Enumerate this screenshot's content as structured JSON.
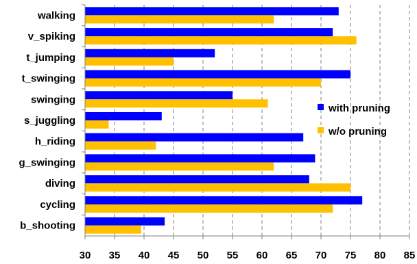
{
  "chart_data": {
    "type": "bar",
    "orientation": "horizontal",
    "categories": [
      "walking",
      "v_spiking",
      "t_jumping",
      "t_swinging",
      "swinging",
      "s_juggling",
      "h_riding",
      "g_swinging",
      "diving",
      "cycling",
      "b_shooting"
    ],
    "series": [
      {
        "name": "with pruning",
        "color": "#0000ff",
        "values": [
          73,
          72,
          52,
          75,
          55,
          43,
          67,
          69,
          68,
          77,
          43.5
        ]
      },
      {
        "name": "w/o pruning",
        "color": "#ffc000",
        "values": [
          62,
          76,
          45,
          70,
          61,
          34,
          42,
          62,
          75,
          72,
          39.5
        ]
      }
    ],
    "xlim": [
      30,
      85
    ],
    "xticks": [
      "30",
      "35",
      "40",
      "45",
      "50",
      "55",
      "60",
      "65",
      "70",
      "75",
      "80",
      "85"
    ],
    "grid": "vertical dashed",
    "legend_position": "right-center",
    "title": "",
    "xlabel": "",
    "ylabel": ""
  }
}
